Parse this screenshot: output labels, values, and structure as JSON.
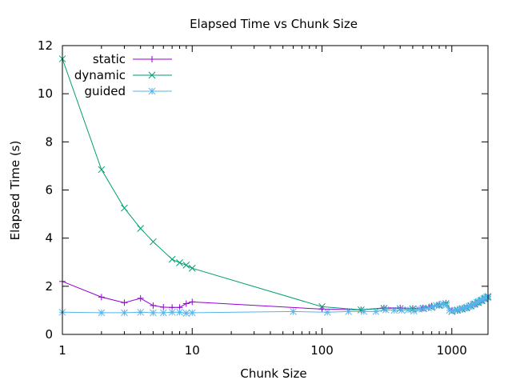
{
  "chart_data": {
    "type": "line",
    "title": "Elapsed Time vs Chunk Size",
    "xlabel": "Chunk Size",
    "ylabel": "Elapsed Time (s)",
    "xscale": "log",
    "xlim": [
      1,
      1900
    ],
    "ylim": [
      0,
      12
    ],
    "xticks": [
      {
        "value": 1,
        "label": "1"
      },
      {
        "value": 10,
        "label": "10"
      },
      {
        "value": 100,
        "label": "100"
      },
      {
        "value": 1000,
        "label": "1000"
      }
    ],
    "yticks": [
      {
        "value": 0,
        "label": "0"
      },
      {
        "value": 2,
        "label": "2"
      },
      {
        "value": 4,
        "label": "4"
      },
      {
        "value": 6,
        "label": "6"
      },
      {
        "value": 8,
        "label": "8"
      },
      {
        "value": 10,
        "label": "10"
      },
      {
        "value": 12,
        "label": "12"
      }
    ],
    "grid": false,
    "legend_position": "top-left",
    "series": [
      {
        "name": "static",
        "color": "#9400d3",
        "marker": "plus",
        "points": [
          [
            1,
            2.2
          ],
          [
            2,
            1.55
          ],
          [
            3,
            1.32
          ],
          [
            4,
            1.5
          ],
          [
            5,
            1.2
          ],
          [
            6,
            1.13
          ],
          [
            7,
            1.12
          ],
          [
            8,
            1.12
          ],
          [
            9,
            1.28
          ],
          [
            10,
            1.35
          ],
          [
            100,
            1.05
          ],
          [
            200,
            1.02
          ],
          [
            300,
            1.1
          ],
          [
            400,
            1.1
          ],
          [
            500,
            1.08
          ],
          [
            600,
            1.1
          ],
          [
            700,
            1.18
          ],
          [
            800,
            1.25
          ],
          [
            900,
            1.3
          ],
          [
            1000,
            1.0
          ],
          [
            1100,
            1.0
          ],
          [
            1200,
            1.05
          ],
          [
            1300,
            1.1
          ],
          [
            1400,
            1.18
          ],
          [
            1500,
            1.25
          ],
          [
            1600,
            1.33
          ],
          [
            1700,
            1.42
          ],
          [
            1800,
            1.5
          ],
          [
            1900,
            1.57
          ]
        ]
      },
      {
        "name": "dynamic",
        "color": "#009e73",
        "marker": "cross",
        "points": [
          [
            1,
            11.45
          ],
          [
            2,
            6.85
          ],
          [
            3,
            5.25
          ],
          [
            4,
            4.4
          ],
          [
            5,
            3.85
          ],
          [
            7,
            3.12
          ],
          [
            8,
            2.98
          ],
          [
            9,
            2.88
          ],
          [
            10,
            2.75
          ],
          [
            100,
            1.15
          ],
          [
            200,
            1.02
          ],
          [
            300,
            1.08
          ],
          [
            400,
            1.07
          ],
          [
            500,
            1.06
          ],
          [
            600,
            1.08
          ],
          [
            700,
            1.12
          ],
          [
            800,
            1.2
          ],
          [
            900,
            1.28
          ],
          [
            1000,
            0.95
          ],
          [
            1100,
            1.0
          ],
          [
            1200,
            1.05
          ],
          [
            1300,
            1.1
          ],
          [
            1400,
            1.18
          ],
          [
            1500,
            1.25
          ],
          [
            1600,
            1.32
          ],
          [
            1700,
            1.4
          ],
          [
            1800,
            1.48
          ],
          [
            1900,
            1.55
          ]
        ]
      },
      {
        "name": "guided",
        "color": "#56b4e9",
        "marker": "star",
        "points": [
          [
            1,
            0.92
          ],
          [
            2,
            0.9
          ],
          [
            3,
            0.9
          ],
          [
            4,
            0.92
          ],
          [
            5,
            0.9
          ],
          [
            6,
            0.9
          ],
          [
            7,
            0.92
          ],
          [
            8,
            0.92
          ],
          [
            9,
            0.88
          ],
          [
            10,
            0.9
          ],
          [
            60,
            0.95
          ],
          [
            110,
            0.92
          ],
          [
            160,
            0.95
          ],
          [
            210,
            0.95
          ],
          [
            260,
            0.95
          ],
          [
            310,
            1.02
          ],
          [
            360,
            1.0
          ],
          [
            410,
            1.0
          ],
          [
            460,
            1.02
          ],
          [
            510,
            0.97
          ],
          [
            560,
            1.05
          ],
          [
            610,
            1.07
          ],
          [
            660,
            1.1
          ],
          [
            710,
            1.15
          ],
          [
            760,
            1.2
          ],
          [
            810,
            1.22
          ],
          [
            860,
            1.27
          ],
          [
            910,
            1.22
          ],
          [
            960,
            1.0
          ],
          [
            1010,
            0.98
          ],
          [
            1060,
            1.0
          ],
          [
            1110,
            1.02
          ],
          [
            1160,
            1.05
          ],
          [
            1210,
            1.08
          ],
          [
            1260,
            1.1
          ],
          [
            1310,
            1.13
          ],
          [
            1360,
            1.17
          ],
          [
            1410,
            1.2
          ],
          [
            1460,
            1.25
          ],
          [
            1510,
            1.28
          ],
          [
            1560,
            1.33
          ],
          [
            1610,
            1.37
          ],
          [
            1660,
            1.4
          ],
          [
            1710,
            1.44
          ],
          [
            1760,
            1.48
          ],
          [
            1810,
            1.52
          ],
          [
            1860,
            1.55
          ],
          [
            1900,
            1.58
          ]
        ]
      }
    ]
  }
}
